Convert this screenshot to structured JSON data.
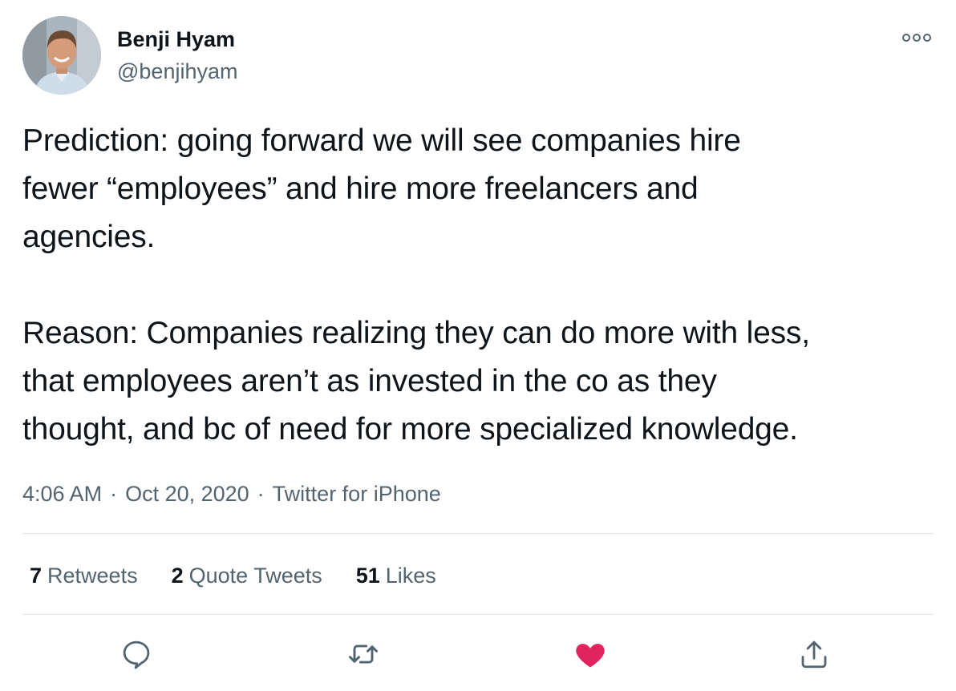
{
  "author": {
    "name": "Benji Hyam",
    "handle": "@benjihyam"
  },
  "tweet": {
    "paragraphs": [
      "Prediction: going forward we will see companies hire\nfewer “employees” and hire more freelancers and\nagencies.",
      "Reason: Companies realizing they can do more with less,\nthat employees aren’t as invested in the co as they\nthought, and bc of need for more specialized knowledge."
    ],
    "time": "4:06 AM",
    "date": "Oct 20, 2020",
    "source": "Twitter for iPhone",
    "separator": "·"
  },
  "stats": {
    "retweets": {
      "count": "7",
      "label": "Retweets"
    },
    "quote_tweets": {
      "count": "2",
      "label": "Quote Tweets"
    },
    "likes": {
      "count": "51",
      "label": "Likes"
    }
  },
  "actions": {
    "reply_icon": "reply-icon",
    "retweet_icon": "retweet-icon",
    "like_icon": "heart-icon",
    "share_icon": "share-icon",
    "liked": true
  },
  "colors": {
    "text_primary": "#0f1419",
    "text_secondary": "#536471",
    "like_active": "#e0245e",
    "divider": "#e1e6ea"
  }
}
